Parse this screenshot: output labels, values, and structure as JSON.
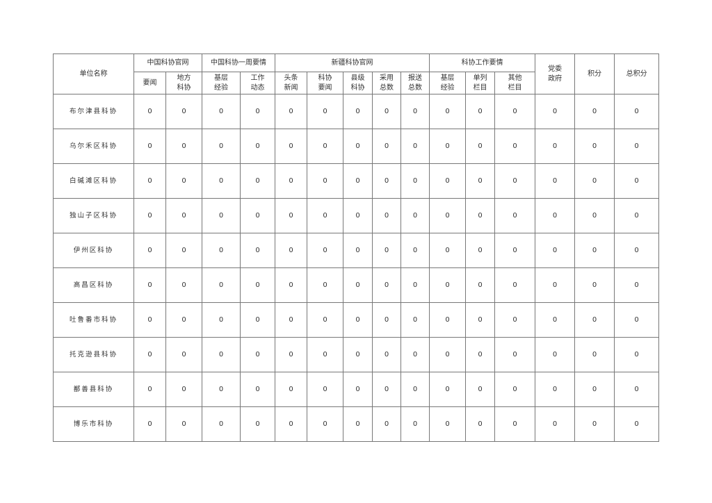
{
  "header": {
    "unit_name": "单位名称",
    "groups": [
      "中国科协官网",
      "中国科协一周要情",
      "新疆科协官网",
      "科协工作要情"
    ],
    "party_gov": "党委\n政府",
    "points": "积分",
    "total_points": "总积分",
    "subcolumns": [
      "要闻",
      "地方\n科协",
      "基层\n经验",
      "工作\n动态",
      "头条\n新闻",
      "科协\n要闻",
      "县级\n科协",
      "采用\n总数",
      "报送\n总数",
      "基层\n经验",
      "单列\n栏目",
      "其他\n栏目"
    ]
  },
  "rows": [
    {
      "name": "布尔津县科协",
      "values": [
        "0",
        "0",
        "0",
        "0",
        "0",
        "0",
        "0",
        "0",
        "0",
        "0",
        "0",
        "0",
        "0",
        "0",
        "0"
      ]
    },
    {
      "name": "乌尔禾区科协",
      "values": [
        "0",
        "0",
        "0",
        "0",
        "0",
        "0",
        "0",
        "0",
        "0",
        "0",
        "0",
        "0",
        "0",
        "0",
        "0"
      ]
    },
    {
      "name": "白碱滩区科协",
      "values": [
        "0",
        "0",
        "0",
        "0",
        "0",
        "0",
        "0",
        "0",
        "0",
        "0",
        "0",
        "0",
        "0",
        "0",
        "0"
      ]
    },
    {
      "name": "独山子区科协",
      "values": [
        "0",
        "0",
        "0",
        "0",
        "0",
        "0",
        "0",
        "0",
        "0",
        "0",
        "0",
        "0",
        "0",
        "0",
        "0"
      ]
    },
    {
      "name": "伊州区科协",
      "values": [
        "0",
        "0",
        "0",
        "0",
        "0",
        "0",
        "0",
        "0",
        "0",
        "0",
        "0",
        "0",
        "0",
        "0",
        "0"
      ]
    },
    {
      "name": "高昌区科协",
      "values": [
        "0",
        "0",
        "0",
        "0",
        "0",
        "0",
        "0",
        "0",
        "0",
        "0",
        "0",
        "0",
        "0",
        "0",
        "0"
      ]
    },
    {
      "name": "吐鲁番市科协",
      "values": [
        "0",
        "0",
        "0",
        "0",
        "0",
        "0",
        "0",
        "0",
        "0",
        "0",
        "0",
        "0",
        "0",
        "0",
        "0"
      ]
    },
    {
      "name": "托克逊县科协",
      "values": [
        "0",
        "0",
        "0",
        "0",
        "0",
        "0",
        "0",
        "0",
        "0",
        "0",
        "0",
        "0",
        "0",
        "0",
        "0"
      ]
    },
    {
      "name": "鄯善县科协",
      "values": [
        "0",
        "0",
        "0",
        "0",
        "0",
        "0",
        "0",
        "0",
        "0",
        "0",
        "0",
        "0",
        "0",
        "0",
        "0"
      ]
    },
    {
      "name": "博乐市科协",
      "values": [
        "0",
        "0",
        "0",
        "0",
        "0",
        "0",
        "0",
        "0",
        "0",
        "0",
        "0",
        "0",
        "0",
        "0",
        "0"
      ]
    }
  ]
}
